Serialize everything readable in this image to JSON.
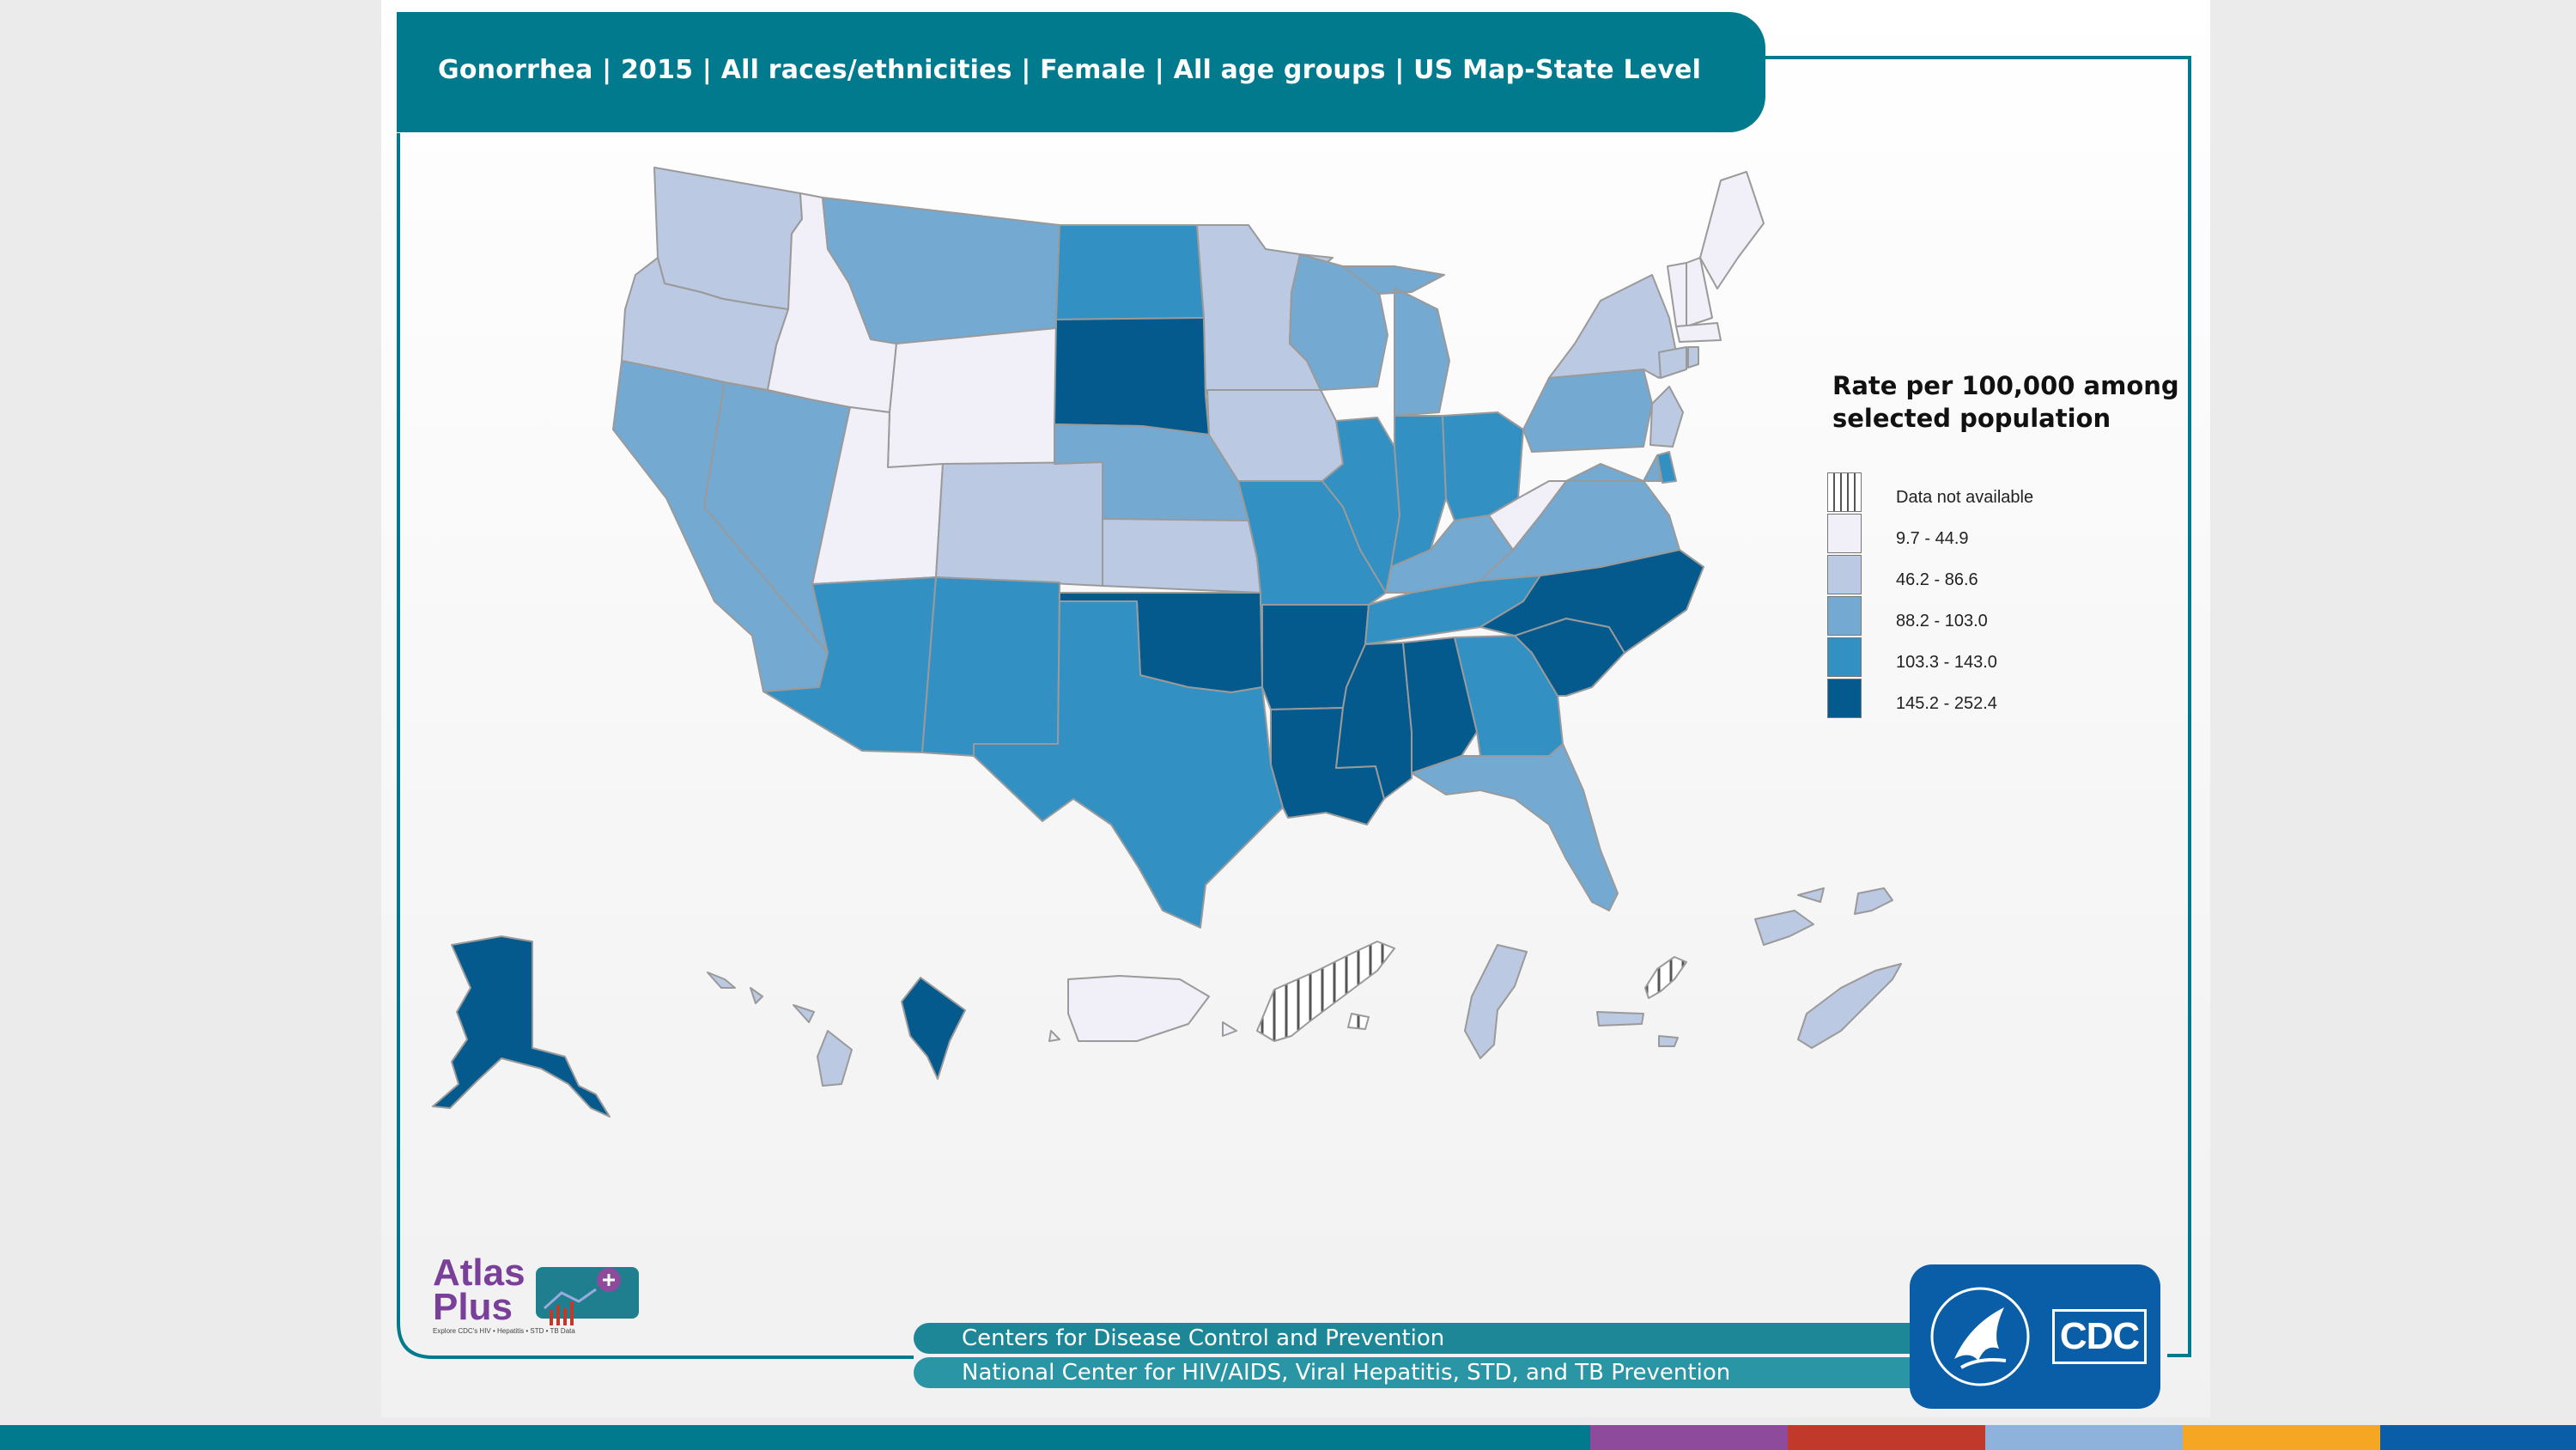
{
  "title": "Gonorrhea | 2015 | All races/ethnicities | Female | All age groups | US Map-State Level",
  "legend": {
    "title": "Rate per 100,000 among selected population",
    "items": [
      {
        "label": "Data not available",
        "color": "#ffffff",
        "pattern": "hatch"
      },
      {
        "label": "9.7 - 44.9",
        "color": "#f1eff7"
      },
      {
        "label": "46.2 - 86.6",
        "color": "#bcc9e2"
      },
      {
        "label": "88.2 - 103.0",
        "color": "#74a9d2"
      },
      {
        "label": "103.3 - 143.0",
        "color": "#3290c3"
      },
      {
        "label": "145.2 - 252.4",
        "color": "#045a8d"
      }
    ]
  },
  "states": [
    {
      "state": "Washington",
      "class": 2
    },
    {
      "state": "Oregon",
      "class": 2
    },
    {
      "state": "California",
      "class": 3
    },
    {
      "state": "Nevada",
      "class": 3
    },
    {
      "state": "Idaho",
      "class": 1
    },
    {
      "state": "Montana",
      "class": 3
    },
    {
      "state": "Wyoming",
      "class": 1
    },
    {
      "state": "Utah",
      "class": 1
    },
    {
      "state": "Colorado",
      "class": 2
    },
    {
      "state": "Arizona",
      "class": 4
    },
    {
      "state": "New Mexico",
      "class": 4
    },
    {
      "state": "North Dakota",
      "class": 4
    },
    {
      "state": "South Dakota",
      "class": 5
    },
    {
      "state": "Nebraska",
      "class": 3
    },
    {
      "state": "Kansas",
      "class": 2
    },
    {
      "state": "Oklahoma",
      "class": 5
    },
    {
      "state": "Texas",
      "class": 4
    },
    {
      "state": "Minnesota",
      "class": 2
    },
    {
      "state": "Iowa",
      "class": 2
    },
    {
      "state": "Missouri",
      "class": 4
    },
    {
      "state": "Arkansas",
      "class": 5
    },
    {
      "state": "Louisiana",
      "class": 5
    },
    {
      "state": "Wisconsin",
      "class": 3
    },
    {
      "state": "Illinois",
      "class": 4
    },
    {
      "state": "Michigan",
      "class": 3
    },
    {
      "state": "Indiana",
      "class": 4
    },
    {
      "state": "Ohio",
      "class": 4
    },
    {
      "state": "Kentucky",
      "class": 3
    },
    {
      "state": "Tennessee",
      "class": 4
    },
    {
      "state": "Mississippi",
      "class": 5
    },
    {
      "state": "Alabama",
      "class": 5
    },
    {
      "state": "Georgia",
      "class": 4
    },
    {
      "state": "Florida",
      "class": 3
    },
    {
      "state": "South Carolina",
      "class": 5
    },
    {
      "state": "North Carolina",
      "class": 5
    },
    {
      "state": "Virginia",
      "class": 3
    },
    {
      "state": "West Virginia",
      "class": 1
    },
    {
      "state": "Pennsylvania",
      "class": 3
    },
    {
      "state": "New York",
      "class": 2
    },
    {
      "state": "Vermont",
      "class": 1
    },
    {
      "state": "New Hampshire",
      "class": 1
    },
    {
      "state": "Maine",
      "class": 1
    },
    {
      "state": "Massachusetts",
      "class": 1
    },
    {
      "state": "Connecticut",
      "class": 2
    },
    {
      "state": "Rhode Island",
      "class": 2
    },
    {
      "state": "New Jersey",
      "class": 2
    },
    {
      "state": "Delaware",
      "class": 4
    },
    {
      "state": "Maryland",
      "class": 3
    },
    {
      "state": "Alaska",
      "class": 5
    },
    {
      "state": "Hawaii",
      "class": 2
    },
    {
      "state": "District of Columbia",
      "class": 5
    },
    {
      "state": "Puerto Rico",
      "class": 1
    },
    {
      "state": "U.S. Virgin Islands",
      "class": 0
    },
    {
      "state": "Guam",
      "class": 2
    },
    {
      "state": "Northern Mariana Islands",
      "class": 0
    },
    {
      "state": "American Samoa",
      "class": 2
    },
    {
      "state": "Palau",
      "class": 2
    },
    {
      "state": "Marshall Islands",
      "class": 2
    },
    {
      "state": "Micronesia",
      "class": 2
    }
  ],
  "logo": {
    "brand": "AtlasPlus",
    "line1": "Atlas",
    "line2": "Plus",
    "tagline": "Explore CDC's HIV • Hepatitis • STD • TB Data"
  },
  "footer": {
    "line1": "Centers for Disease Control and Prevention",
    "line2": "National Center for HIV/AIDS, Viral Hepatitis, STD, and TB Prevention"
  },
  "agency": {
    "abbr": "CDC"
  },
  "colors": {
    "accent": "#007a8c",
    "cdc_blue": "#0a5ea8",
    "stripe": [
      "#007a8c",
      "#8e4b9c",
      "#c0392b",
      "#8db3dc",
      "#f5a623",
      "#0a5ea8"
    ]
  }
}
